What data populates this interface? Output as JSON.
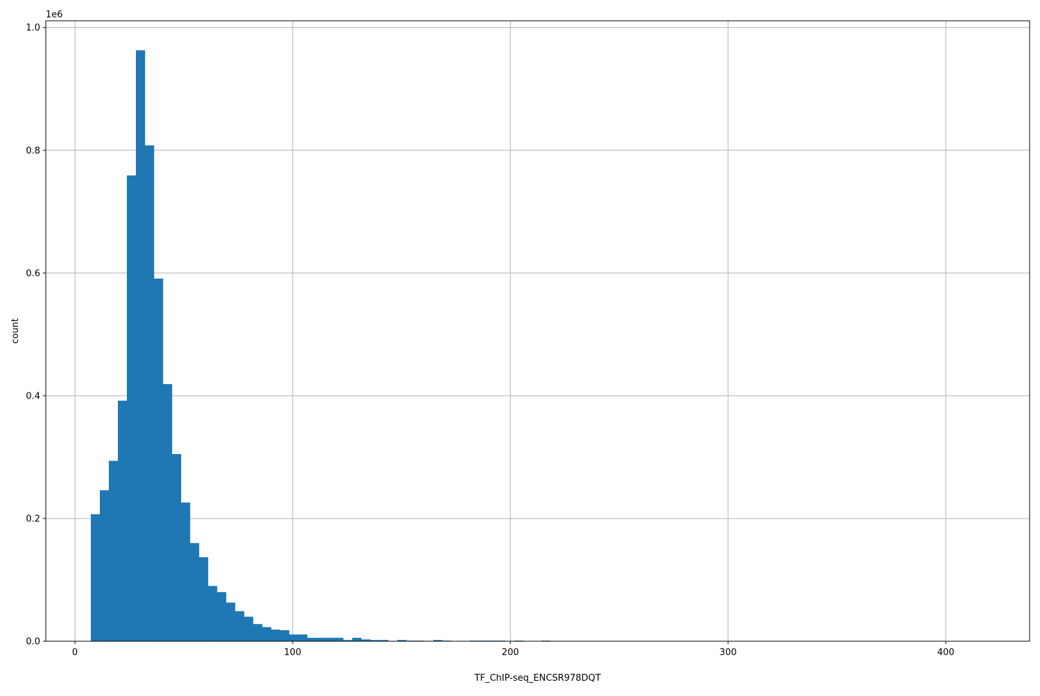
{
  "chart_data": {
    "type": "bar",
    "subtype": "histogram",
    "title": "",
    "xlabel": "TF_ChIP-seq_ENCSR978DQT",
    "ylabel": "count",
    "y_offset_label": "1e6",
    "xlim": [
      -13.4,
      438.5
    ],
    "ylim": [
      0,
      1011000
    ],
    "grid": true,
    "bar_color": "#1f77b4",
    "grid_color": "#b0b0b0",
    "x_ticks": [
      0,
      100,
      200,
      300,
      400
    ],
    "x_tick_labels": [
      "0",
      "100",
      "200",
      "300",
      "400"
    ],
    "y_ticks": [
      0,
      200000,
      400000,
      600000,
      800000,
      1000000
    ],
    "y_tick_labels": [
      "0.0",
      "0.2",
      "0.4",
      "0.6",
      "0.8",
      "1.0"
    ],
    "bin_start": 7.3,
    "bin_width": 4.14,
    "values": [
      207000,
      246000,
      294000,
      392000,
      759000,
      963000,
      808000,
      591000,
      419000,
      305000,
      226000,
      160000,
      137000,
      90000,
      80000,
      63000,
      49000,
      40000,
      28000,
      23000,
      19000,
      18000,
      11000,
      11000,
      5600,
      5600,
      5600,
      5600,
      2000,
      5600,
      3000,
      2000,
      2000,
      0,
      2000,
      1000,
      1000,
      0,
      2000,
      1000,
      0,
      0,
      1000,
      1000,
      1000,
      1000,
      0,
      1000,
      0,
      0,
      1000,
      0,
      0,
      0,
      0,
      0,
      0,
      0,
      0,
      0,
      0,
      0,
      0,
      0,
      0,
      0,
      0,
      0,
      0,
      0,
      0,
      0,
      0,
      0,
      0,
      0,
      0,
      0,
      0,
      0,
      0,
      0,
      0,
      0,
      0,
      0,
      0,
      0,
      0,
      0,
      0,
      0,
      0,
      0,
      0,
      0,
      0,
      0,
      0,
      0
    ]
  }
}
